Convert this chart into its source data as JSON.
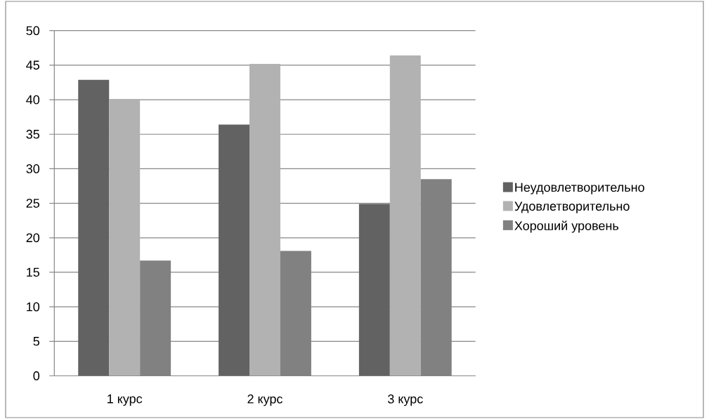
{
  "chart_data": {
    "type": "bar",
    "categories": [
      "1 курс",
      "2 курс",
      "3 курс"
    ],
    "series": [
      {
        "name": "Неудовлетворительно",
        "color": "#626262",
        "values": [
          42.9,
          36.4,
          24.9
        ]
      },
      {
        "name": "Удовлетворительно",
        "color": "#b2b2b2",
        "values": [
          40.1,
          45.2,
          46.4
        ]
      },
      {
        "name": "Хороший уровень",
        "color": "#818181",
        "values": [
          16.7,
          18.1,
          28.5
        ]
      }
    ],
    "ylim": [
      0,
      50
    ],
    "yticks": [
      0,
      5,
      10,
      15,
      20,
      25,
      30,
      35,
      40,
      45,
      50
    ],
    "grid": "y",
    "legend": "right"
  }
}
